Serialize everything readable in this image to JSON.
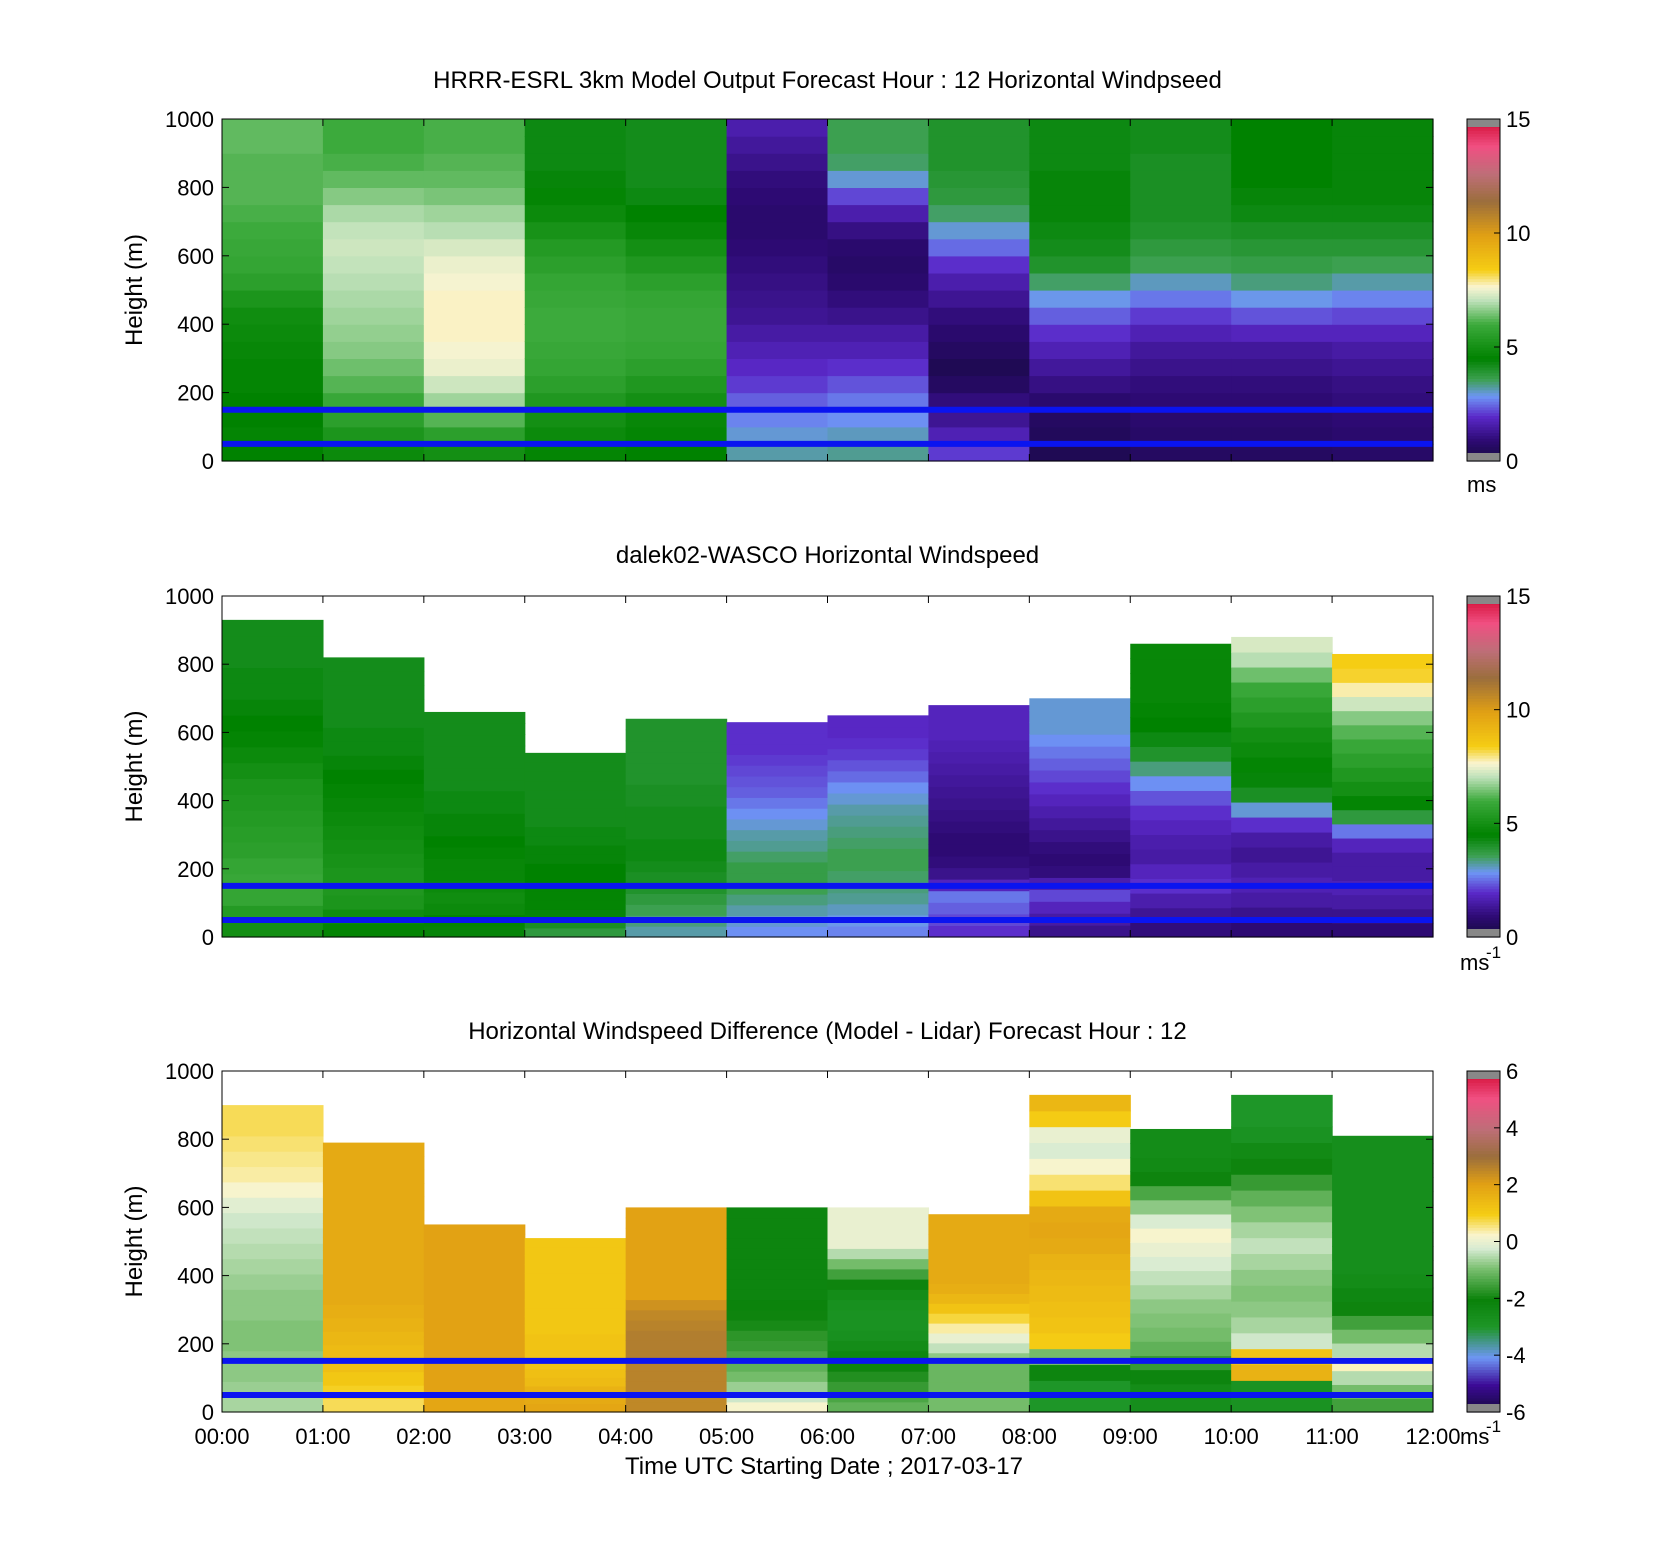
{
  "chart_data": [
    {
      "type": "heatmap",
      "title": "HRRR-ESRL 3km Model Output   Forecast Hour : 12 Horizontal Windpseed",
      "ylabel": "Height (m)",
      "xlabel": "",
      "ylim": [
        0,
        1000
      ],
      "xlim": [
        0,
        12
      ],
      "yticks": [
        "0",
        "200",
        "400",
        "600",
        "800",
        "1000"
      ],
      "xticklabels": [],
      "colorbar": {
        "min": 0,
        "max": 15,
        "ticks": [
          "0",
          "5",
          "10",
          "15"
        ],
        "unit": "ms",
        "unit_sup": "",
        "scheme": "speed"
      },
      "hlines": [
        50,
        150
      ],
      "data_height_top": [
        1000,
        1000,
        1000,
        1000,
        1000,
        1000,
        1000,
        1000,
        1000,
        1000,
        1000,
        1000
      ],
      "columns": [
        [
          4.5,
          4.6,
          4.5,
          4.5,
          4.6,
          4.6,
          4.7,
          4.8,
          4.9,
          5.2,
          5.6,
          5.8,
          5.9,
          6.0,
          6.1,
          6.2,
          6.2,
          6.2,
          6.3,
          6.3
        ],
        [
          4.8,
          5.2,
          5.6,
          5.9,
          6.2,
          6.4,
          6.6,
          6.7,
          6.8,
          6.9,
          7.0,
          7.1,
          7.2,
          7.1,
          6.9,
          6.6,
          6.3,
          6.1,
          6.0,
          6.0
        ],
        [
          5.0,
          5.6,
          6.2,
          6.8,
          7.2,
          7.5,
          7.6,
          7.7,
          7.7,
          7.7,
          7.6,
          7.5,
          7.3,
          7.0,
          6.8,
          6.5,
          6.3,
          6.2,
          6.1,
          6.1
        ],
        [
          4.6,
          4.8,
          5.0,
          5.3,
          5.6,
          5.8,
          5.9,
          6.0,
          6.0,
          5.9,
          5.8,
          5.6,
          5.4,
          5.1,
          4.8,
          4.6,
          4.4,
          4.3,
          4.3,
          4.3
        ],
        [
          4.5,
          4.6,
          4.7,
          5.0,
          5.3,
          5.6,
          5.8,
          5.9,
          5.9,
          5.8,
          5.6,
          5.3,
          5.0,
          4.7,
          4.5,
          4.3,
          4.2,
          4.2,
          4.2,
          4.2
        ],
        [
          3.2,
          3.0,
          2.7,
          2.4,
          2.1,
          1.9,
          1.7,
          1.5,
          1.3,
          1.2,
          1.1,
          1.0,
          0.9,
          0.8,
          0.8,
          0.9,
          1.0,
          1.2,
          1.4,
          1.6
        ],
        [
          3.3,
          3.1,
          2.8,
          2.6,
          2.3,
          2.0,
          1.7,
          1.5,
          1.2,
          1.0,
          0.8,
          0.7,
          0.8,
          1.1,
          1.6,
          2.2,
          3.0,
          3.5,
          3.6,
          3.6
        ],
        [
          2.1,
          1.7,
          1.3,
          1.0,
          0.6,
          0.4,
          0.6,
          0.8,
          1.0,
          1.3,
          1.6,
          2.0,
          2.5,
          3.0,
          3.5,
          3.8,
          3.9,
          4.0,
          4.0,
          4.0
        ],
        [
          0.4,
          0.5,
          0.6,
          0.8,
          1.1,
          1.4,
          1.7,
          2.0,
          2.4,
          2.9,
          3.5,
          4.0,
          4.2,
          4.3,
          4.4,
          4.4,
          4.4,
          4.3,
          4.3,
          4.3
        ],
        [
          0.6,
          0.7,
          0.8,
          0.9,
          1.0,
          1.2,
          1.4,
          1.7,
          2.1,
          2.6,
          3.1,
          3.6,
          3.8,
          4.0,
          4.1,
          4.1,
          4.1,
          4.1,
          4.2,
          4.2
        ],
        [
          0.6,
          0.7,
          0.8,
          0.9,
          1.0,
          1.2,
          1.4,
          1.8,
          2.3,
          2.9,
          3.4,
          3.7,
          3.9,
          4.1,
          4.3,
          4.4,
          4.5,
          4.5,
          4.5,
          4.5
        ],
        [
          0.7,
          0.8,
          0.9,
          1.0,
          1.1,
          1.3,
          1.5,
          1.8,
          2.2,
          2.7,
          3.2,
          3.6,
          3.9,
          4.1,
          4.3,
          4.4,
          4.4,
          4.4,
          4.4,
          4.4
        ]
      ]
    },
    {
      "type": "heatmap",
      "title": "dalek02-WASCO  Horizontal Windspeed",
      "ylabel": "Height (m)",
      "xlabel": "",
      "ylim": [
        0,
        1000
      ],
      "xlim": [
        0,
        12
      ],
      "yticks": [
        "0",
        "200",
        "400",
        "600",
        "800",
        "1000"
      ],
      "xticklabels": [],
      "colorbar": {
        "min": 0,
        "max": 15,
        "ticks": [
          "0",
          "5",
          "10",
          "15"
        ],
        "unit": "ms",
        "unit_sup": "-1",
        "scheme": "speed"
      },
      "hlines": [
        50,
        150
      ],
      "data_height_top": [
        930,
        820,
        660,
        540,
        640,
        630,
        650,
        680,
        700,
        860,
        880,
        830
      ],
      "columns": [
        [
          5.0,
          5.4,
          5.8,
          5.9,
          5.8,
          5.6,
          5.5,
          5.4,
          5.3,
          5.2,
          5.0,
          4.8,
          4.6,
          4.5,
          4.4,
          4.3,
          4.3,
          4.2,
          4.2,
          4.2
        ],
        [
          4.6,
          4.9,
          5.2,
          5.3,
          5.2,
          5.1,
          5.0,
          4.9,
          4.8,
          4.7,
          4.6,
          4.5,
          4.4,
          4.3,
          4.3,
          4.2,
          4.2,
          4.2,
          4.2,
          4.2
        ],
        [
          4.4,
          4.6,
          4.8,
          4.9,
          4.8,
          4.7,
          4.7,
          4.6,
          4.5,
          4.4,
          4.4,
          4.3,
          4.3,
          4.2,
          4.2,
          4.2,
          4.2,
          4.2,
          4.2,
          4.2
        ],
        [
          3.8,
          4.1,
          4.4,
          4.6,
          4.6,
          4.6,
          4.5,
          4.5,
          4.4,
          4.4,
          4.3,
          4.3,
          4.2,
          4.2,
          4.2,
          4.2,
          4.2,
          4.2,
          4.2,
          4.2
        ],
        [
          3.2,
          3.4,
          3.6,
          3.8,
          4.0,
          4.1,
          4.2,
          4.3,
          4.3,
          4.2,
          4.2,
          4.2,
          4.1,
          4.1,
          4.0,
          4.0,
          4.0,
          4.0,
          4.0,
          4.0
        ],
        [
          2.8,
          3.0,
          3.2,
          3.4,
          3.6,
          3.7,
          3.7,
          3.5,
          3.3,
          3.2,
          3.0,
          2.8,
          2.6,
          2.4,
          2.3,
          2.2,
          2.1,
          2.0,
          2.0,
          2.0
        ],
        [
          2.7,
          2.9,
          3.1,
          3.3,
          3.4,
          3.5,
          3.6,
          3.6,
          3.5,
          3.4,
          3.3,
          3.2,
          3.0,
          2.8,
          2.5,
          2.3,
          2.1,
          2.0,
          1.9,
          1.9
        ],
        [
          2.0,
          2.2,
          2.4,
          2.6,
          1.8,
          1.2,
          1.0,
          0.9,
          0.9,
          1.0,
          1.1,
          1.2,
          1.3,
          1.4,
          1.5,
          1.6,
          1.7,
          1.8,
          1.8,
          1.8
        ],
        [
          1.2,
          1.5,
          1.8,
          2.2,
          1.6,
          1.0,
          0.9,
          1.0,
          1.2,
          1.4,
          1.6,
          1.8,
          2.0,
          2.2,
          2.4,
          2.6,
          2.8,
          3.0,
          3.0,
          3.0
        ],
        [
          1.0,
          1.3,
          1.6,
          2.0,
          1.8,
          1.5,
          1.6,
          1.8,
          2.0,
          2.3,
          2.8,
          3.4,
          4.0,
          4.3,
          4.5,
          4.6,
          4.7,
          4.7,
          4.7,
          4.7
        ],
        [
          0.9,
          1.2,
          1.5,
          1.7,
          1.5,
          1.3,
          1.5,
          2.0,
          3.0,
          4.1,
          4.4,
          4.6,
          4.8,
          5.0,
          5.3,
          5.6,
          5.9,
          6.4,
          7.0,
          7.3
        ],
        [
          0.9,
          1.2,
          1.5,
          1.7,
          1.5,
          1.5,
          1.8,
          2.6,
          3.8,
          4.6,
          5.0,
          5.3,
          5.6,
          5.9,
          6.2,
          6.6,
          7.2,
          7.8,
          8.3,
          8.4
        ]
      ]
    },
    {
      "type": "heatmap",
      "title": "Horizontal Windspeed Difference (Model - Lidar) Forecast Hour : 12",
      "ylabel": "Height (m)",
      "xlabel": "Time UTC  Starting Date ; 2017-03-17",
      "ylim": [
        0,
        1000
      ],
      "xlim": [
        0,
        12
      ],
      "yticks": [
        "0",
        "200",
        "400",
        "600",
        "800",
        "1000"
      ],
      "xticklabels": [
        "00:00",
        "01:00",
        "02:00",
        "03:00",
        "04:00",
        "05:00",
        "06:00",
        "07:00",
        "08:00",
        "09:00",
        "10:00",
        "11:00",
        "12:00"
      ],
      "colorbar": {
        "min": -6,
        "max": 6,
        "ticks": [
          "-6",
          "-4",
          "-2",
          "0",
          "2",
          "4",
          "6"
        ],
        "unit": "ms",
        "unit_sup": "-1",
        "scheme": "diff"
      },
      "hlines": [
        50,
        150
      ],
      "data_height_top": [
        900,
        790,
        550,
        510,
        600,
        600,
        600,
        580,
        930,
        830,
        930,
        810
      ],
      "columns": [
        [
          -0.6,
          -0.7,
          -0.8,
          -0.8,
          -0.9,
          -0.9,
          -0.8,
          -0.8,
          -0.7,
          -0.6,
          -0.5,
          -0.4,
          -0.3,
          -0.1,
          0.2,
          0.4,
          0.5,
          0.6,
          0.7,
          0.7
        ],
        [
          0.7,
          0.9,
          1.1,
          1.3,
          1.4,
          1.5,
          1.6,
          1.7,
          1.8,
          1.8,
          1.8,
          1.8,
          1.8,
          1.8,
          1.8,
          1.8,
          1.8,
          1.8,
          1.8,
          1.8
        ],
        [
          1.9,
          1.9,
          2.0,
          2.0,
          2.0,
          2.0,
          2.0,
          2.0,
          2.0,
          2.0,
          2.0,
          2.0,
          2.0,
          2.0,
          2.0,
          2.0,
          2.0,
          2.0,
          2.0,
          2.0
        ],
        [
          1.9,
          1.8,
          1.6,
          1.4,
          1.3,
          1.2,
          1.2,
          1.2,
          1.2,
          1.1,
          1.1,
          1.1,
          1.1,
          1.1,
          1.1,
          1.1,
          1.1,
          1.1,
          1.1,
          1.1
        ],
        [
          2.5,
          2.5,
          2.6,
          2.6,
          2.6,
          2.7,
          2.7,
          2.7,
          2.6,
          2.5,
          2.3,
          2.0,
          2.0,
          2.0,
          2.0,
          2.0,
          2.0,
          2.0,
          2.0,
          2.0
        ],
        [
          0.2,
          -0.3,
          -0.7,
          -1.0,
          -1.2,
          -1.4,
          -1.6,
          -1.7,
          -1.9,
          -2.0,
          -2.1,
          -2.2,
          -2.2,
          -2.2,
          -2.2,
          -2.2,
          -2.2,
          -2.2,
          -2.2,
          -2.2
        ],
        [
          -1.2,
          -1.4,
          -1.6,
          -1.8,
          -2.0,
          -2.3,
          -2.5,
          -2.7,
          -2.8,
          -2.8,
          -2.7,
          -2.5,
          -2.0,
          -1.5,
          -1.0,
          -0.5,
          0.0,
          0.0,
          0.0,
          0.0
        ],
        [
          -1.0,
          -1.0,
          -1.1,
          -1.1,
          -1.1,
          -0.8,
          -0.4,
          0.0,
          0.4,
          0.8,
          1.2,
          1.5,
          1.7,
          1.8,
          1.8,
          1.8,
          1.8,
          1.8,
          1.8,
          1.8
        ],
        [
          -3.0,
          -3.0,
          -2.2,
          -1.0,
          1.0,
          1.2,
          1.3,
          1.4,
          1.5,
          1.6,
          1.8,
          1.9,
          1.8,
          1.2,
          0.6,
          0.2,
          -0.2,
          0.0,
          1.0,
          1.5
        ],
        [
          -2.6,
          -2.5,
          -2.2,
          -1.6,
          -1.2,
          -1.0,
          -0.9,
          -0.8,
          -0.6,
          -0.4,
          -0.2,
          0.0,
          0.2,
          -0.2,
          -0.8,
          -1.4,
          -2.0,
          -2.4,
          -2.5,
          -2.5
        ],
        [
          -2.8,
          -2.8,
          1.6,
          1.2,
          -0.3,
          -0.6,
          -0.8,
          -0.9,
          -0.8,
          -0.6,
          -0.4,
          -0.6,
          -0.9,
          -1.2,
          -1.6,
          -2.0,
          -2.4,
          -2.8,
          -3.0,
          -3.0
        ],
        [
          -1.5,
          -1.0,
          -0.5,
          0.3,
          -0.5,
          -1.0,
          -1.5,
          -2.0,
          -2.3,
          -2.5,
          -2.6,
          -2.6,
          -2.6,
          -2.6,
          -2.6,
          -2.6,
          -2.6,
          -2.6,
          -2.6,
          -2.6
        ]
      ]
    }
  ]
}
